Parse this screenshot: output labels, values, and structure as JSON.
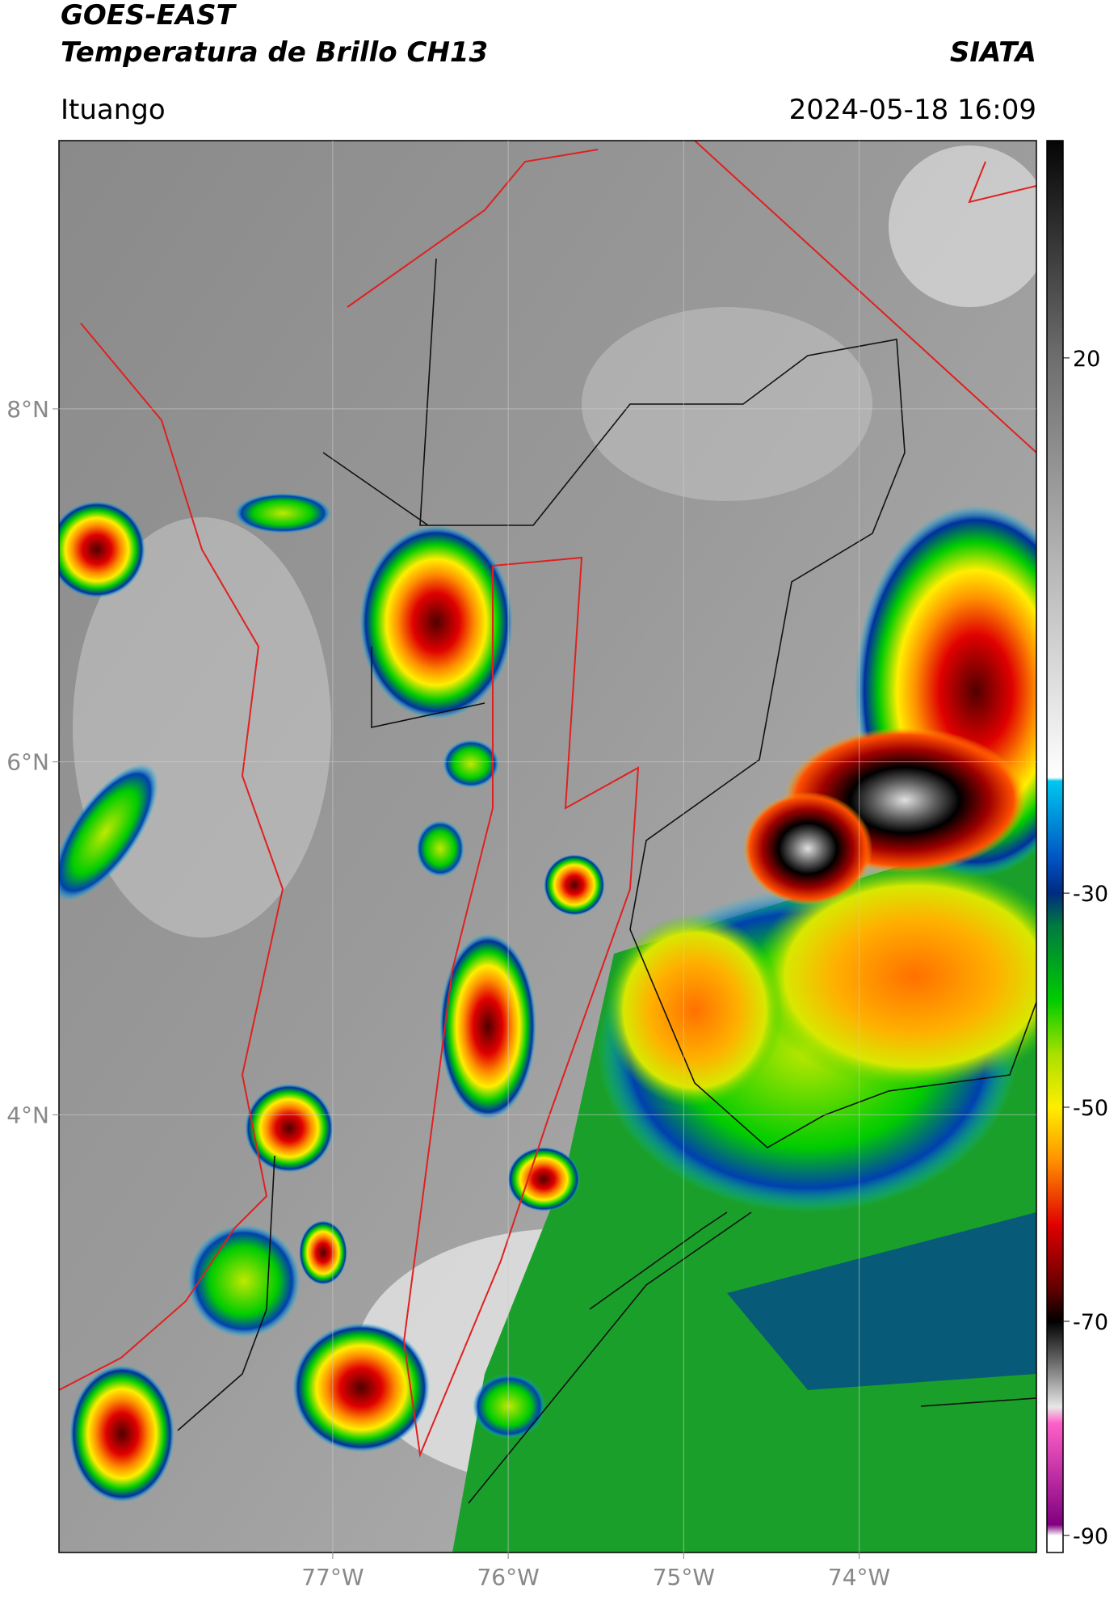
{
  "chart_data": {
    "type": "map",
    "title": "GOES-EAST",
    "subtitle": "Temperatura de Brillo CH13",
    "source": "SIATA",
    "location": "Ituango",
    "datetime": "2024-05-18 16:09",
    "xlim": [
      -78.56,
      -72.99
    ],
    "ylim": [
      1.52,
      9.52
    ],
    "xticks": [
      {
        "value": -77,
        "label": "77°W"
      },
      {
        "value": -76,
        "label": "76°W"
      },
      {
        "value": -75,
        "label": "75°W"
      },
      {
        "value": -74,
        "label": "74°W"
      }
    ],
    "yticks": [
      {
        "value": 8,
        "label": "8°N"
      },
      {
        "value": 6,
        "label": "6°N"
      },
      {
        "value": 4,
        "label": "4°N"
      }
    ],
    "grid": true,
    "clim": [
      -91.6,
      40.3
    ],
    "cticks": [
      20,
      -30,
      -50,
      -70,
      -90
    ],
    "colormap": [
      {
        "value": 40.3,
        "color": "#050505"
      },
      {
        "value": 20,
        "color": "#6e6e6e"
      },
      {
        "value": -19.2,
        "color": "#ffffff"
      },
      {
        "value": -19.5,
        "color": "#00c8f0"
      },
      {
        "value": -27,
        "color": "#0050c0"
      },
      {
        "value": -30,
        "color": "#002a80"
      },
      {
        "value": -33,
        "color": "#007a40"
      },
      {
        "value": -40,
        "color": "#00cc00"
      },
      {
        "value": -45,
        "color": "#a8e000"
      },
      {
        "value": -50,
        "color": "#ffee00"
      },
      {
        "value": -55,
        "color": "#ff9000"
      },
      {
        "value": -61,
        "color": "#e00000"
      },
      {
        "value": -67,
        "color": "#600000"
      },
      {
        "value": -70,
        "color": "#000000"
      },
      {
        "value": -74,
        "color": "#707070"
      },
      {
        "value": -78,
        "color": "#e8e8e8"
      },
      {
        "value": -79.5,
        "color": "#ff60c8"
      },
      {
        "value": -89,
        "color": "#800080"
      },
      {
        "value": -90,
        "color": "#ffffff"
      },
      {
        "value": -91.6,
        "color": "#ffffff"
      }
    ]
  }
}
